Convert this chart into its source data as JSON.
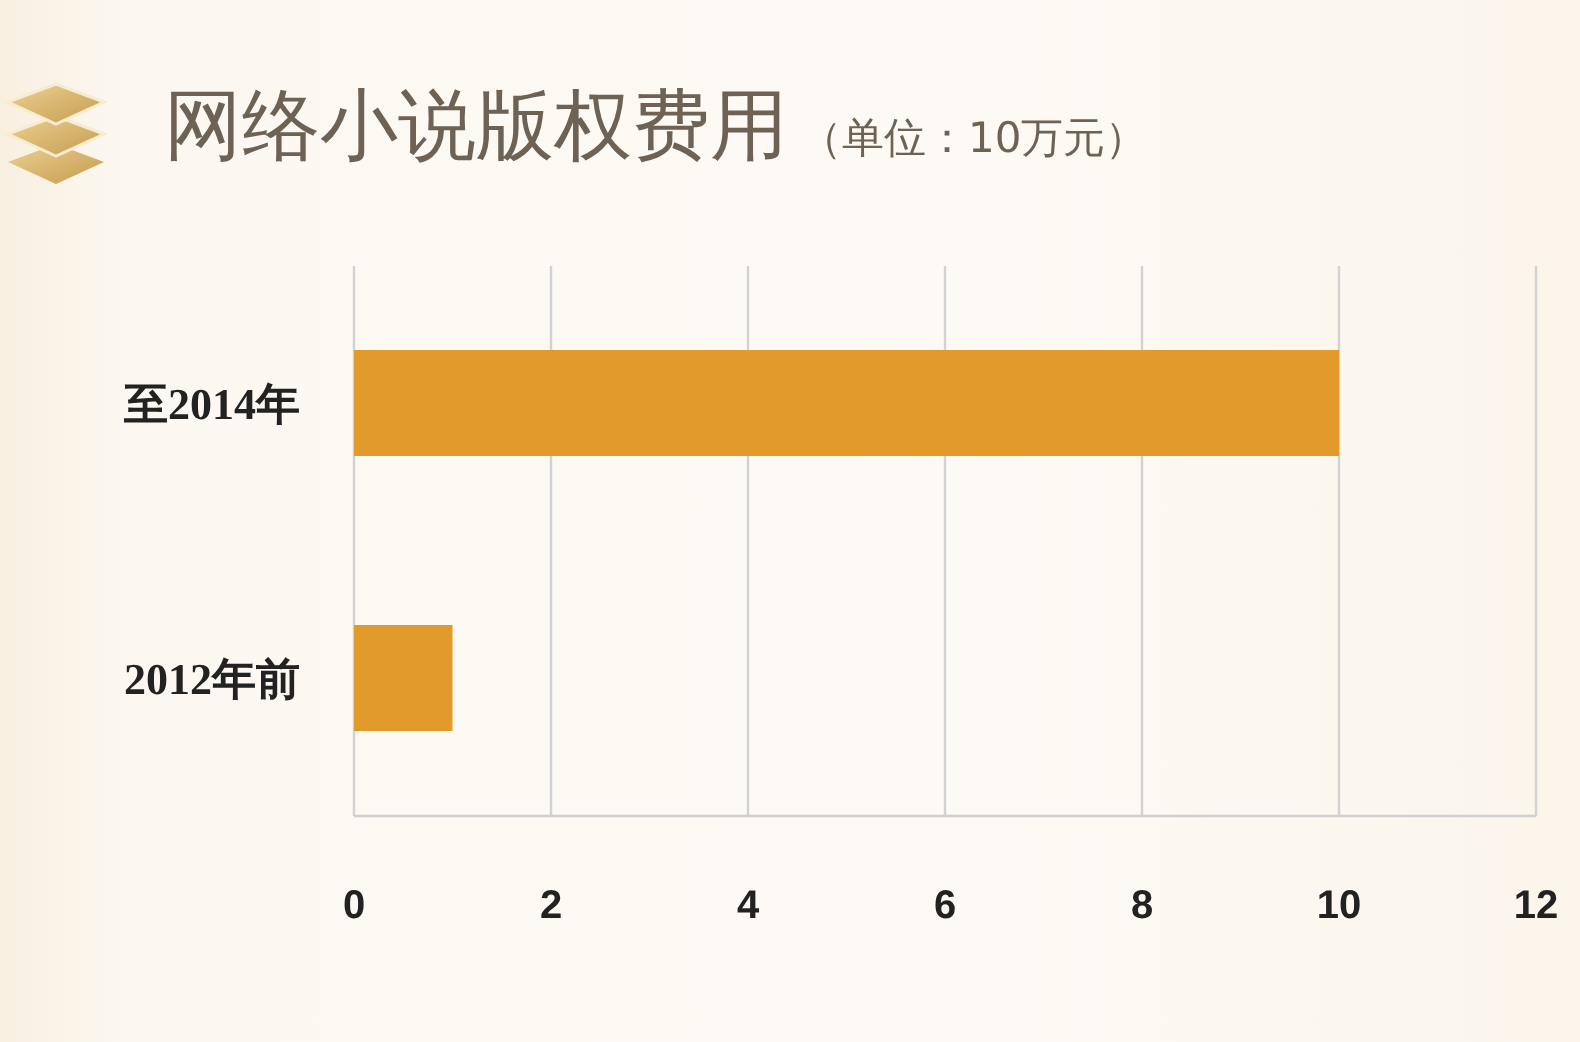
{
  "chart_data": {
    "type": "bar",
    "orientation": "horizontal",
    "title": "网络小说版权费用",
    "subtitle": "（单位：10万元）",
    "categories": [
      "至2014年",
      "2012年前"
    ],
    "values": [
      10,
      1
    ],
    "color": "#e29a2b",
    "xlim": [
      0,
      12
    ],
    "xticks": [
      0,
      2,
      4,
      6,
      8,
      10,
      12
    ],
    "grid": "x"
  }
}
